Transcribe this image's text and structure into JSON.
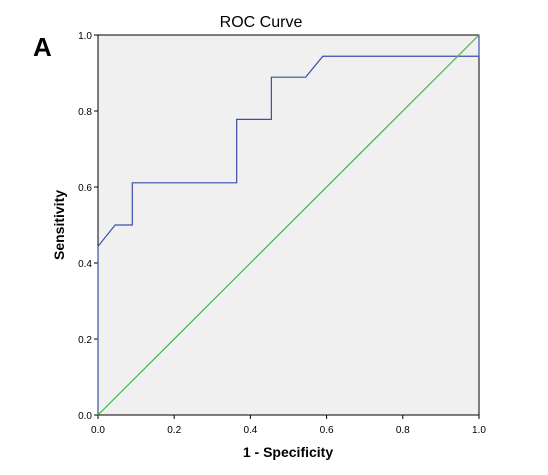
{
  "panel_label": "A",
  "chart_data": {
    "type": "line",
    "title": "ROC Curve",
    "xlabel": "1 - Specificity",
    "ylabel": "Sensitivity",
    "xlim": [
      0.0,
      1.0
    ],
    "ylim": [
      0.0,
      1.0
    ],
    "x_ticks": [
      "0.0",
      "0.2",
      "0.4",
      "0.6",
      "0.8",
      "1.0"
    ],
    "y_ticks": [
      "0.0",
      "0.2",
      "0.4",
      "0.6",
      "0.8",
      "1.0"
    ],
    "grid": false,
    "legend": "none",
    "background_color": "#f0f0f0",
    "series": [
      {
        "color": "#3b4fa8",
        "x": [
          0.0,
          0.0,
          0.045,
          0.045,
          0.09,
          0.09,
          0.364,
          0.364,
          0.455,
          0.455,
          0.545,
          0.59,
          0.59,
          1.0,
          1.0
        ],
        "y": [
          0.0,
          0.444,
          0.5,
          0.5,
          0.5,
          0.611,
          0.611,
          0.778,
          0.778,
          0.889,
          0.889,
          0.944,
          0.944,
          0.944,
          1.0
        ]
      },
      {
        "color": "#3cb83c",
        "x": [
          0.0,
          1.0
        ],
        "y": [
          0.0,
          1.0
        ]
      }
    ]
  }
}
